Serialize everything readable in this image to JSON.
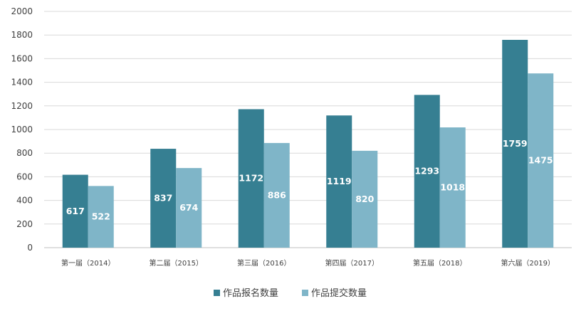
{
  "chart_data": {
    "type": "bar",
    "categories": [
      "第一届（2014）",
      "第二届（2015）",
      "第三届（2016）",
      "第四届（2017）",
      "第五届（2018）",
      "第六届（2019）"
    ],
    "series": [
      {
        "name": "作品报名数量",
        "values": [
          617,
          837,
          1172,
          1119,
          1293,
          1759
        ],
        "color": "#367f92"
      },
      {
        "name": "作品提交数量",
        "values": [
          522,
          674,
          886,
          820,
          1018,
          1475
        ],
        "color": "#7fb5c8"
      }
    ],
    "yticks": [
      "0",
      "200",
      "400",
      "600",
      "800",
      "1000",
      "1200",
      "1400",
      "1600",
      "1800",
      "2000"
    ],
    "ylim": [
      0,
      2000
    ],
    "grid": true,
    "legend_position": "bottom-center",
    "data_labels": true
  }
}
